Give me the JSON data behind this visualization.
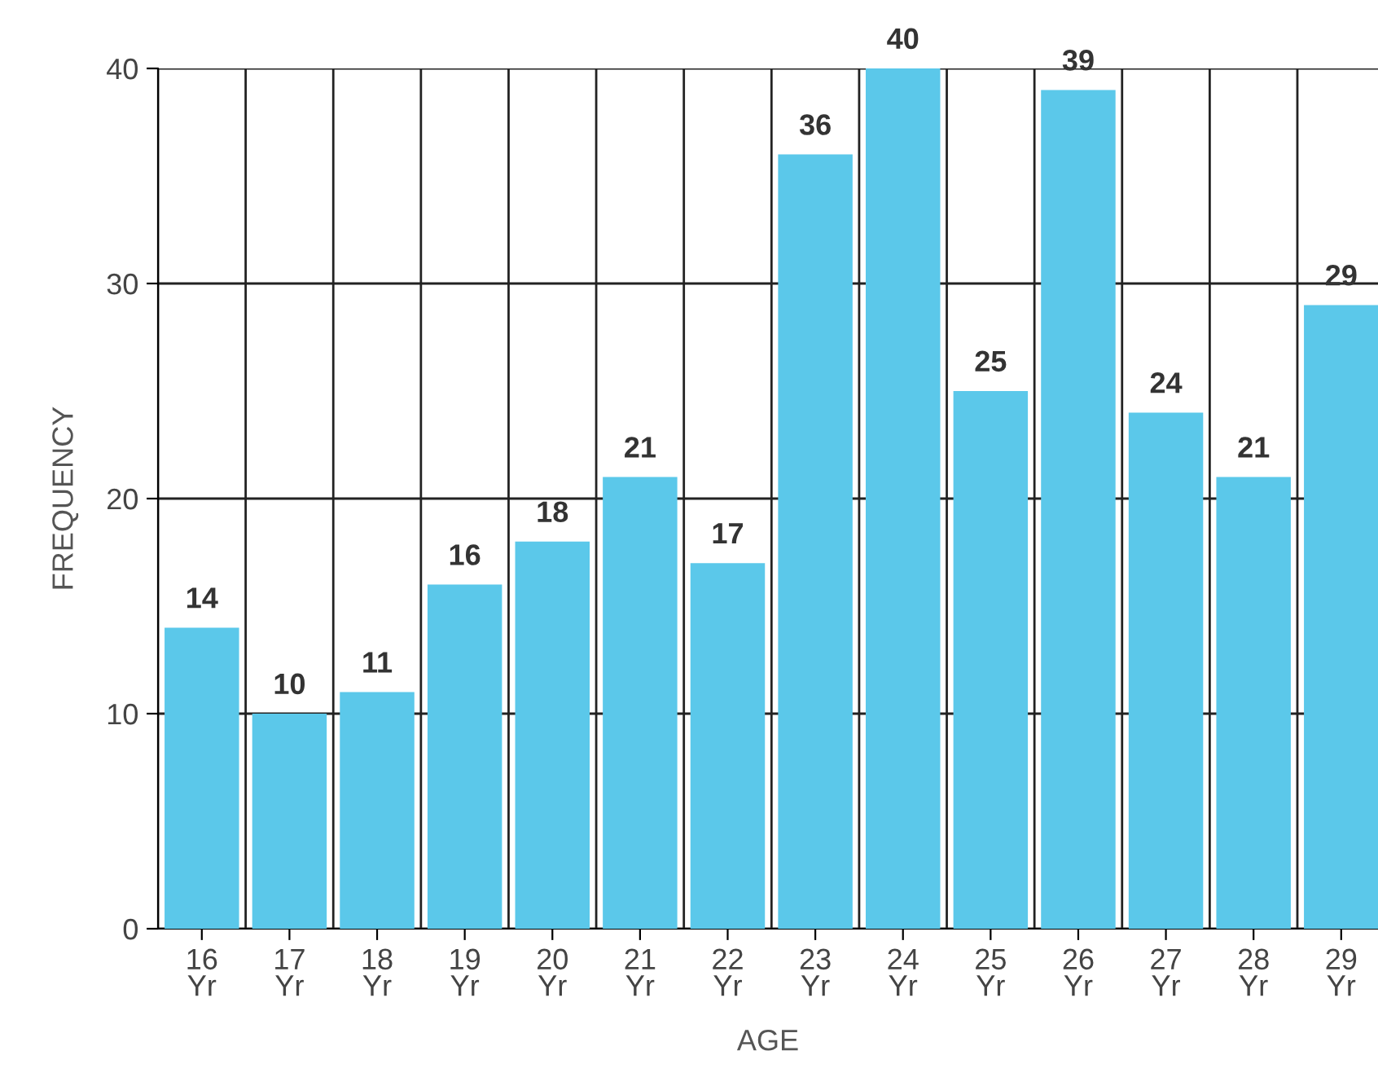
{
  "chart_data": {
    "type": "bar",
    "xlabel": "AGE",
    "ylabel": "FREQUENCY",
    "categories": [
      "16\nYr",
      "17\nYr",
      "18\nYr",
      "19\nYr",
      "20\nYr",
      "21\nYr",
      "22\nYr",
      "23\nYr",
      "24\nYr",
      "25\nYr",
      "26\nYr",
      "27\nYr",
      "28\nYr",
      "29\nYr"
    ],
    "values": [
      14,
      10,
      11,
      16,
      18,
      21,
      17,
      36,
      40,
      25,
      39,
      24,
      21,
      29
    ],
    "color": "#5bc8ea",
    "ylim": [
      0,
      40
    ],
    "yticks": [
      0,
      10,
      20,
      30,
      40
    ],
    "grid": true,
    "data_labels": true,
    "legend": false
  }
}
